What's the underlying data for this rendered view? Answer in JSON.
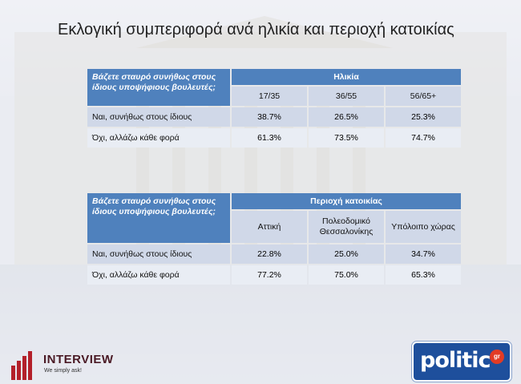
{
  "title": "Εκλογική συμπεριφορά ανά ηλικία και περιοχή κατοικίας",
  "chart_data": [
    {
      "type": "table",
      "question": "Βάζετε σταυρό συνήθως στους ίδιους υποψήφιους βουλευτές;",
      "group_header": "Ηλικία",
      "columns": [
        "17/35",
        "36/55",
        "56/65+"
      ],
      "rows": [
        {
          "label": "Ναι, συνήθως στους ίδιους",
          "values": [
            "38.7%",
            "26.5%",
            "25.3%"
          ]
        },
        {
          "label": "Όχι, αλλάζω κάθε φορά",
          "values": [
            "61.3%",
            "73.5%",
            "74.7%"
          ]
        }
      ]
    },
    {
      "type": "table",
      "question": "Βάζετε σταυρό συνήθως στους ίδιους υποψήφιους βουλευτές;",
      "group_header": "Περιοχή κατοικίας",
      "columns": [
        "Αττική",
        "Πολεοδομικό Θεσσαλονίκης",
        "Υπόλοιπο χώρας"
      ],
      "rows": [
        {
          "label": "Ναι, συνήθως στους ίδιους",
          "values": [
            "22.8%",
            "25.0%",
            "34.7%"
          ]
        },
        {
          "label": "Όχι, αλλάζω κάθε φορά",
          "values": [
            "77.2%",
            "75.0%",
            "65.3%"
          ]
        }
      ]
    }
  ],
  "logos": {
    "interview_name": "INTERVIEW",
    "interview_tagline": "We simply ask!",
    "politic_name": "politic",
    "politic_suffix": "gr",
    "brand_color": "#1e4f9c",
    "accent_color": "#b3202a"
  },
  "colors": {
    "header": "#4f81bd",
    "row_dark": "#d0d8e8",
    "row_light": "#e9edf4"
  }
}
